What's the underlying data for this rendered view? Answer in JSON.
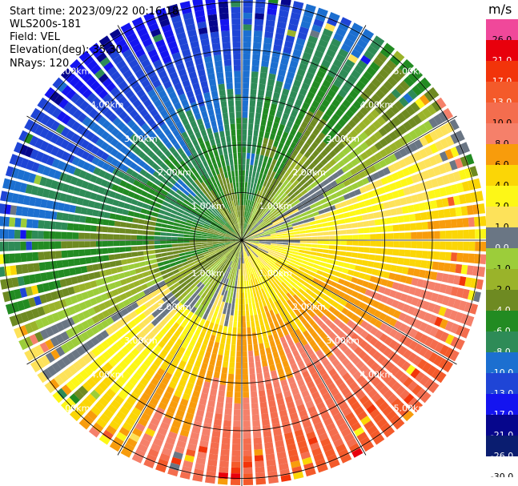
{
  "info": {
    "start_time": "Start time: 2023/09/22 00:16:18",
    "site": "WLS200s-181",
    "field": "Field: VEL",
    "elevation": "Elevation(deg): 35.30",
    "nrays": "NRays: 120"
  },
  "ppi": {
    "range_rings_km": [
      1,
      2,
      3,
      4,
      5
    ],
    "ring_labels": [
      "1.00km",
      "2.00km",
      "3.00km",
      "4.00km",
      "5.00km"
    ],
    "nrays": 120
  },
  "colorbar": {
    "unit": "m/s",
    "levels": [
      {
        "label": "26.0",
        "color": "#f0489a"
      },
      {
        "label": "21.0",
        "color": "#e8000c"
      },
      {
        "label": "17.0",
        "color": "#f2340a"
      },
      {
        "label": "13.0",
        "color": "#f45a2a"
      },
      {
        "label": "10.0",
        "color": "#f46d4e"
      },
      {
        "label": "8.0",
        "color": "#f5806a"
      },
      {
        "label": "6.0",
        "color": "#f89c0c"
      },
      {
        "label": "4.0",
        "color": "#fbd606"
      },
      {
        "label": "2.0",
        "color": "#fdf717"
      },
      {
        "label": "1.0",
        "color": "#fde25a"
      },
      {
        "label": "0.0",
        "color": "#6a7684"
      },
      {
        "label": "-1.0",
        "color": "#9ccd3a"
      },
      {
        "label": "-2.0",
        "color": "#9ab32a"
      },
      {
        "label": "-4.0",
        "color": "#6e8a22"
      },
      {
        "label": "-6.0",
        "color": "#228b22"
      },
      {
        "label": "-8.0",
        "color": "#2e8b57"
      },
      {
        "label": "-10.0",
        "color": "#1c6fd0"
      },
      {
        "label": "-13.0",
        "color": "#1f45d6"
      },
      {
        "label": "-17.0",
        "color": "#1414f0"
      },
      {
        "label": "-21.0",
        "color": "#06068c"
      },
      {
        "label": "-26.0",
        "color": "#0a1d70"
      },
      {
        "label": "-30.0",
        "color": "#ffffff"
      }
    ]
  }
}
